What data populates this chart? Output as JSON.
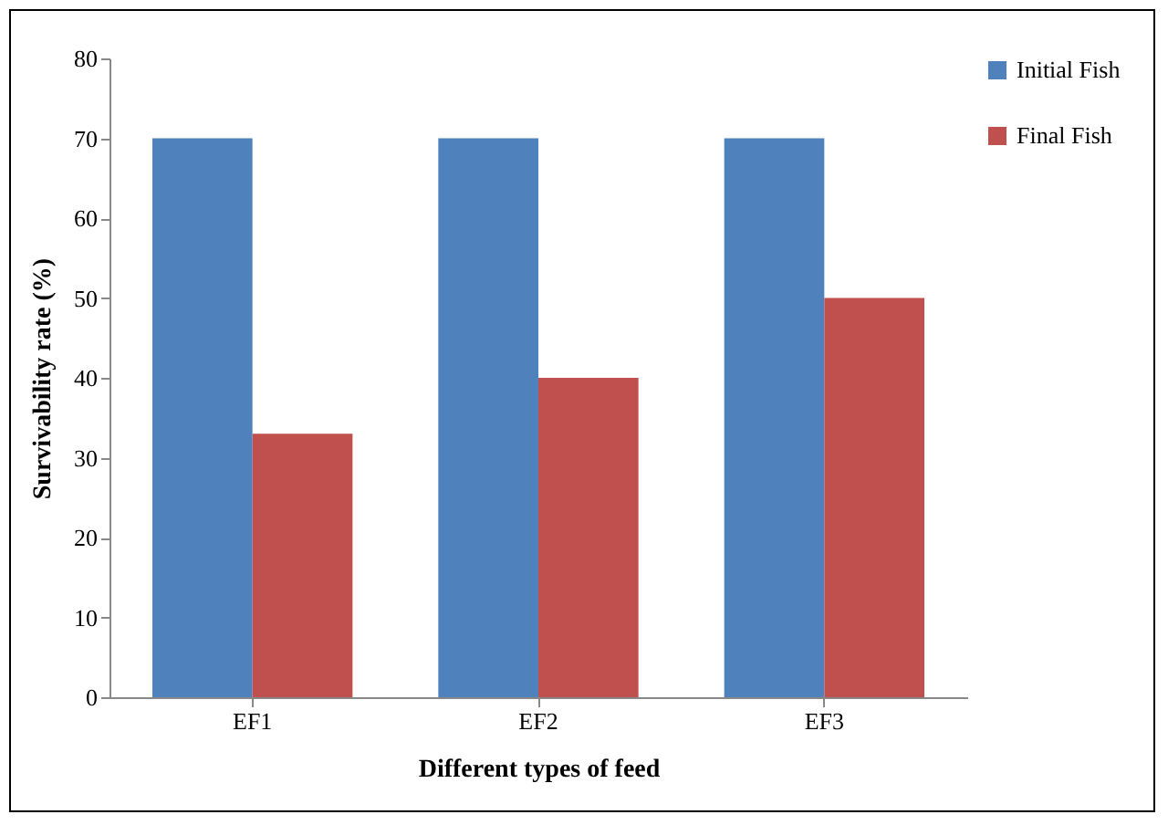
{
  "chart_data": {
    "type": "bar",
    "xlabel": "Different types of feed",
    "ylabel": "Survivability rate (%)",
    "categories": [
      "EF1",
      "EF2",
      "EF3"
    ],
    "series": [
      {
        "name": "Initial Fish",
        "color": "#4f81bd",
        "values": [
          70,
          70,
          70
        ]
      },
      {
        "name": "Final Fish",
        "color": "#c0504d",
        "values": [
          33,
          40,
          50
        ]
      }
    ],
    "ylim": [
      0,
      80
    ],
    "yticks": [
      0,
      10,
      20,
      30,
      40,
      50,
      60,
      70,
      80
    ],
    "grid": false,
    "legend": "right"
  }
}
